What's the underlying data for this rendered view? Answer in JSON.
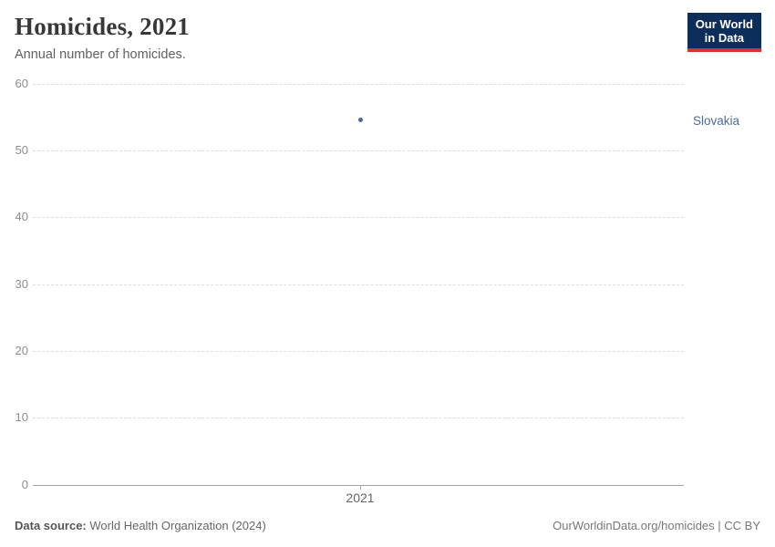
{
  "header": {
    "title": "Homicides, 2021",
    "subtitle": "Annual number of homicides."
  },
  "logo": {
    "line1": "Our World",
    "line2": "in Data",
    "bg_color": "#0d2e5b",
    "accent_color": "#d8352a"
  },
  "chart_data": {
    "type": "scatter",
    "title": "Homicides, 2021",
    "subtitle": "Annual number of homicides.",
    "x": [
      2021
    ],
    "series": [
      {
        "name": "Slovakia",
        "values": [
          54.5
        ],
        "color": "#4c6a9c"
      }
    ],
    "xlabel": "",
    "ylabel": "",
    "ylim": [
      0,
      60
    ],
    "yticks": [
      0,
      10,
      20,
      30,
      40,
      50,
      60
    ],
    "xtick_labels": [
      "2021"
    ],
    "grid": "horizontal-dashed",
    "gridline_color": "#dcdcdc",
    "axis_line_color": "#a5a5a5",
    "legend_position": "entity-label-right"
  },
  "footer": {
    "datasource_label": "Data source:",
    "datasource_value": "World Health Organization (2024)",
    "attribution": "OurWorldinData.org/homicides | CC BY"
  }
}
